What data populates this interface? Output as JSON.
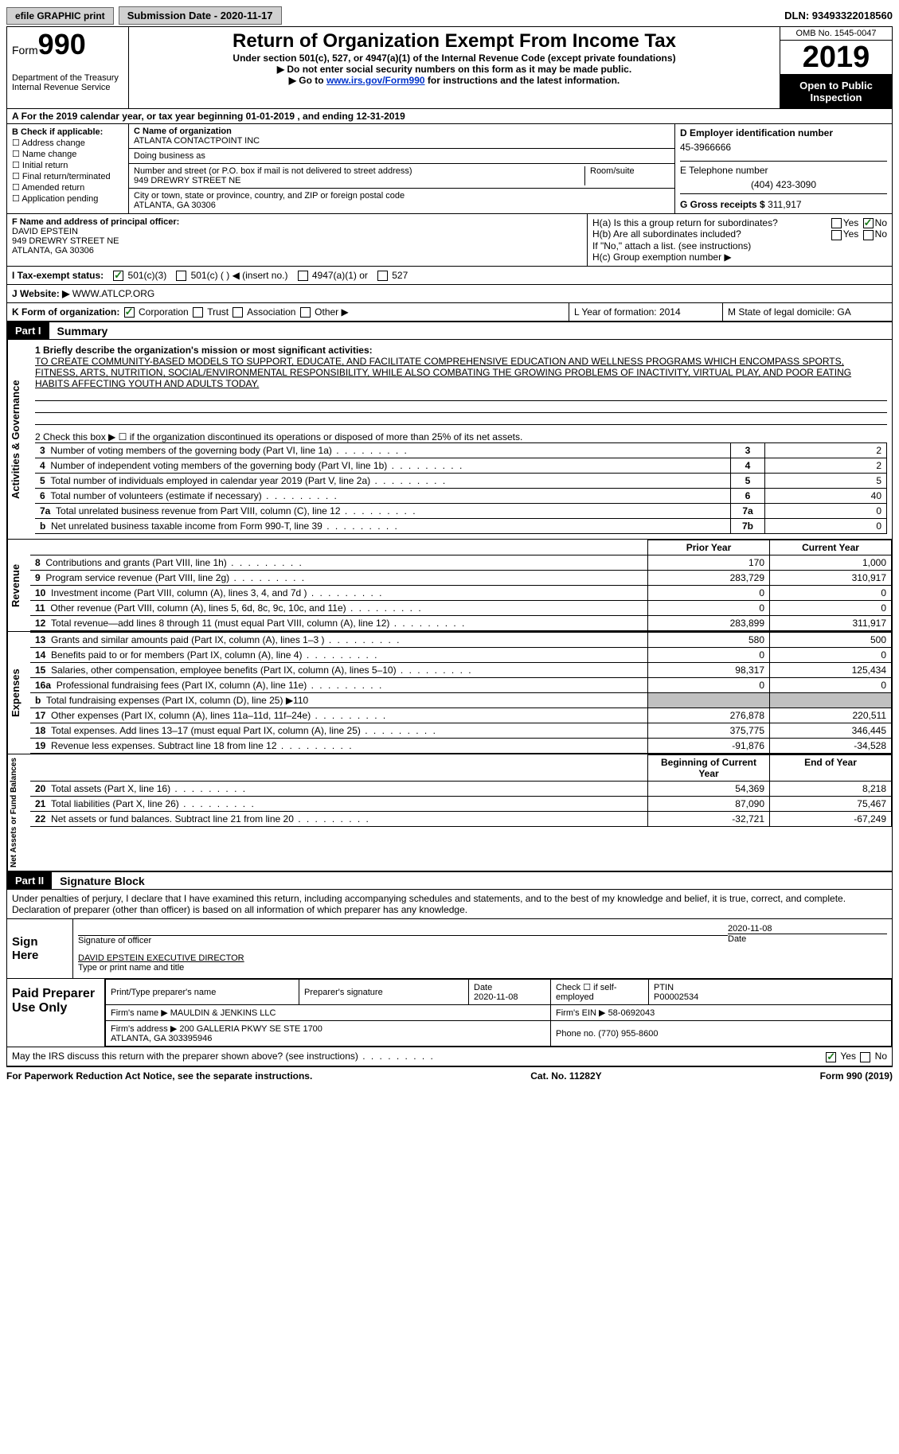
{
  "topbar": {
    "efile": "efile GRAPHIC print",
    "sub_date_label": "Submission Date - 2020-11-17",
    "dln": "DLN: 93493322018560"
  },
  "header": {
    "form_word": "Form",
    "form_num": "990",
    "dept": "Department of the Treasury\nInternal Revenue Service",
    "title": "Return of Organization Exempt From Income Tax",
    "sub": "Under section 501(c), 527, or 4947(a)(1) of the Internal Revenue Code (except private foundations)",
    "inst1": "▶ Do not enter social security numbers on this form as it may be made public.",
    "inst2_pre": "▶ Go to ",
    "inst2_link": "www.irs.gov/Form990",
    "inst2_post": " for instructions and the latest information.",
    "omb": "OMB No. 1545-0047",
    "year": "2019",
    "open": "Open to Public Inspection"
  },
  "period": {
    "line_a": "For the 2019 calendar year, or tax year beginning 01-01-2019   , and ending 12-31-2019"
  },
  "boxB": {
    "label": "B Check if applicable:",
    "opts": [
      "Address change",
      "Name change",
      "Initial return",
      "Final return/terminated",
      "Amended return",
      "Application pending"
    ]
  },
  "boxC": {
    "name_label": "C Name of organization",
    "name": "ATLANTA CONTACTPOINT INC",
    "dba_label": "Doing business as",
    "addr_label": "Number and street (or P.O. box if mail is not delivered to street address)",
    "room_label": "Room/suite",
    "addr": "949 DREWRY STREET NE",
    "city_label": "City or town, state or province, country, and ZIP or foreign postal code",
    "city": "ATLANTA, GA  30306"
  },
  "boxD": {
    "ein_label": "D Employer identification number",
    "ein": "45-3966666",
    "tel_label": "E Telephone number",
    "tel": "(404) 423-3090",
    "gross_label": "G Gross receipts $",
    "gross": "311,917"
  },
  "boxF": {
    "label": "F  Name and address of principal officer:",
    "name": "DAVID EPSTEIN",
    "addr1": "949 DREWRY STREET NE",
    "addr2": "ATLANTA, GA  30306"
  },
  "boxH": {
    "ha": "H(a)  Is this a group return for subordinates?",
    "hb": "H(b)  Are all subordinates included?",
    "hb_note": "If \"No,\" attach a list. (see instructions)",
    "hc": "H(c)  Group exemption number ▶",
    "yes": "Yes",
    "no": "No"
  },
  "taxStatus": {
    "label": "I  Tax-exempt status:",
    "o1": "501(c)(3)",
    "o2": "501(c) (  ) ◀ (insert no.)",
    "o3": "4947(a)(1) or",
    "o4": "527"
  },
  "website": {
    "label": "J  Website: ▶",
    "val": "WWW.ATLCP.ORG"
  },
  "rowK": {
    "k_label": "K Form of organization:",
    "k_corp": "Corporation",
    "k_trust": "Trust",
    "k_assoc": "Association",
    "k_other": "Other ▶",
    "l": "L Year of formation: 2014",
    "m": "M State of legal domicile: GA"
  },
  "part1": {
    "header": "Part I",
    "title": "Summary",
    "line1_label": "1  Briefly describe the organization's mission or most significant activities:",
    "mission": "TO CREATE COMMUNITY-BASED MODELS TO SUPPORT, EDUCATE, AND FACILITATE COMPREHENSIVE EDUCATION AND WELLNESS PROGRAMS WHICH ENCOMPASS SPORTS, FITNESS, ARTS, NUTRITION, SOCIAL/ENVIRONMENTAL RESPONSIBILITY, WHILE ALSO COMBATING THE GROWING PROBLEMS OF INACTIVITY, VIRTUAL PLAY, AND POOR EATING HABITS AFFECTING YOUTH AND ADULTS TODAY.",
    "line2": "2   Check this box ▶ ☐  if the organization discontinued its operations or disposed of more than 25% of its net assets.",
    "gov_rows": [
      {
        "n": "3",
        "label": "Number of voting members of the governing body (Part VI, line 1a)",
        "box": "3",
        "val": "2"
      },
      {
        "n": "4",
        "label": "Number of independent voting members of the governing body (Part VI, line 1b)",
        "box": "4",
        "val": "2"
      },
      {
        "n": "5",
        "label": "Total number of individuals employed in calendar year 2019 (Part V, line 2a)",
        "box": "5",
        "val": "5"
      },
      {
        "n": "6",
        "label": "Total number of volunteers (estimate if necessary)",
        "box": "6",
        "val": "40"
      },
      {
        "n": "7a",
        "label": "Total unrelated business revenue from Part VIII, column (C), line 12",
        "box": "7a",
        "val": "0"
      },
      {
        "n": "b",
        "label": "Net unrelated business taxable income from Form 990-T, line 39",
        "box": "7b",
        "val": "0"
      }
    ],
    "col_prior": "Prior Year",
    "col_current": "Current Year",
    "rev_rows": [
      {
        "n": "8",
        "label": "Contributions and grants (Part VIII, line 1h)",
        "p": "170",
        "c": "1,000"
      },
      {
        "n": "9",
        "label": "Program service revenue (Part VIII, line 2g)",
        "p": "283,729",
        "c": "310,917"
      },
      {
        "n": "10",
        "label": "Investment income (Part VIII, column (A), lines 3, 4, and 7d )",
        "p": "0",
        "c": "0"
      },
      {
        "n": "11",
        "label": "Other revenue (Part VIII, column (A), lines 5, 6d, 8c, 9c, 10c, and 11e)",
        "p": "0",
        "c": "0"
      },
      {
        "n": "12",
        "label": "Total revenue—add lines 8 through 11 (must equal Part VIII, column (A), line 12)",
        "p": "283,899",
        "c": "311,917"
      }
    ],
    "exp_rows": [
      {
        "n": "13",
        "label": "Grants and similar amounts paid (Part IX, column (A), lines 1–3 )",
        "p": "580",
        "c": "500"
      },
      {
        "n": "14",
        "label": "Benefits paid to or for members (Part IX, column (A), line 4)",
        "p": "0",
        "c": "0"
      },
      {
        "n": "15",
        "label": "Salaries, other compensation, employee benefits (Part IX, column (A), lines 5–10)",
        "p": "98,317",
        "c": "125,434"
      },
      {
        "n": "16a",
        "label": "Professional fundraising fees (Part IX, column (A), line 11e)",
        "p": "0",
        "c": "0"
      },
      {
        "n": "b",
        "label": "Total fundraising expenses (Part IX, column (D), line 25) ▶110",
        "p": "",
        "c": "",
        "gray": true
      },
      {
        "n": "17",
        "label": "Other expenses (Part IX, column (A), lines 11a–11d, 11f–24e)",
        "p": "276,878",
        "c": "220,511"
      },
      {
        "n": "18",
        "label": "Total expenses. Add lines 13–17 (must equal Part IX, column (A), line 25)",
        "p": "375,775",
        "c": "346,445"
      },
      {
        "n": "19",
        "label": "Revenue less expenses. Subtract line 18 from line 12",
        "p": "-91,876",
        "c": "-34,528"
      }
    ],
    "col_begin": "Beginning of Current Year",
    "col_end": "End of Year",
    "na_rows": [
      {
        "n": "20",
        "label": "Total assets (Part X, line 16)",
        "p": "54,369",
        "c": "8,218"
      },
      {
        "n": "21",
        "label": "Total liabilities (Part X, line 26)",
        "p": "87,090",
        "c": "75,467"
      },
      {
        "n": "22",
        "label": "Net assets or fund balances. Subtract line 21 from line 20",
        "p": "-32,721",
        "c": "-67,249"
      }
    ]
  },
  "part2": {
    "header": "Part II",
    "title": "Signature Block",
    "decl": "Under penalties of perjury, I declare that I have examined this return, including accompanying schedules and statements, and to the best of my knowledge and belief, it is true, correct, and complete. Declaration of preparer (other than officer) is based on all information of which preparer has any knowledge.",
    "sign_here": "Sign Here",
    "sig_officer": "Signature of officer",
    "sig_date": "Date",
    "sig_date_val": "2020-11-08",
    "officer_name": "DAVID EPSTEIN  EXECUTIVE DIRECTOR",
    "type_name": "Type or print name and title",
    "paid_prep": "Paid Preparer Use Only",
    "prep_name_label": "Print/Type preparer's name",
    "prep_sig_label": "Preparer's signature",
    "prep_date_label": "Date",
    "prep_date": "2020-11-08",
    "self_emp": "Check ☐ if self-employed",
    "ptin_label": "PTIN",
    "ptin": "P00002534",
    "firm_name_label": "Firm's name    ▶",
    "firm_name": "MAULDIN & JENKINS LLC",
    "firm_ein_label": "Firm's EIN ▶",
    "firm_ein": "58-0692043",
    "firm_addr_label": "Firm's address ▶",
    "firm_addr": "200 GALLERIA PKWY SE STE 1700\nATLANTA, GA  303395946",
    "firm_phone_label": "Phone no.",
    "firm_phone": "(770) 955-8600",
    "discuss": "May the IRS discuss this return with the preparer shown above? (see instructions)",
    "paperwork": "For Paperwork Reduction Act Notice, see the separate instructions.",
    "cat": "Cat. No. 11282Y",
    "form_footer": "Form 990 (2019)"
  },
  "labels": {
    "vert_gov": "Activities & Governance",
    "vert_rev": "Revenue",
    "vert_exp": "Expenses",
    "vert_na": "Net Assets or Fund Balances"
  }
}
